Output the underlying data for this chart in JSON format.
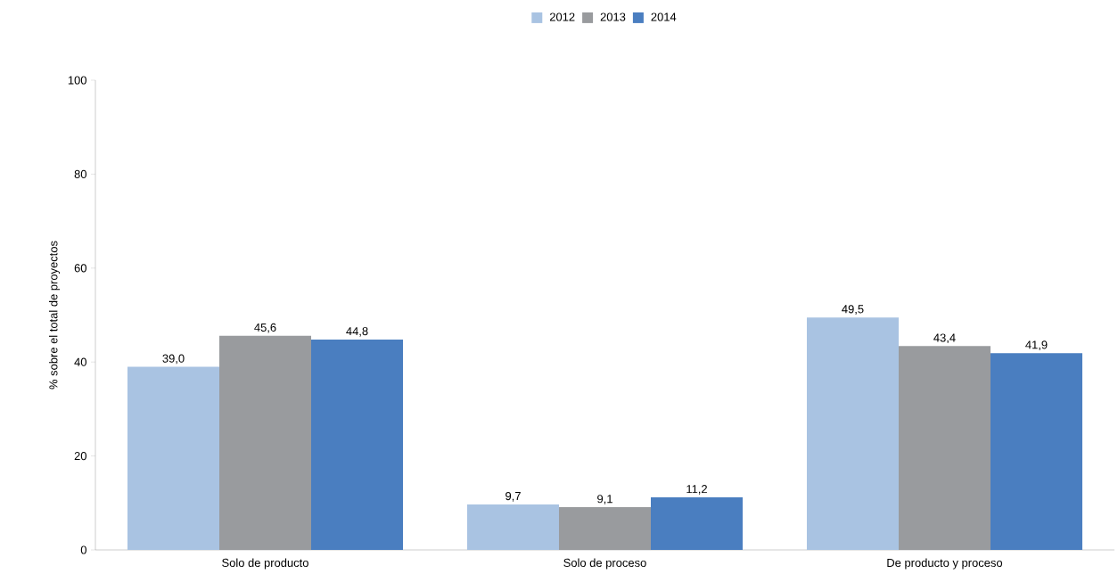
{
  "chart_data": {
    "type": "bar",
    "ylabel": "% sobre el total de proyectos",
    "categories": [
      "Solo de producto",
      "Solo de proceso",
      "De producto y proceso"
    ],
    "series": [
      {
        "name": "2012",
        "color": "#a9c3e2",
        "values": [
          39.0,
          9.7,
          49.5
        ],
        "value_labels": [
          "39,0",
          "9,7",
          "49,5"
        ]
      },
      {
        "name": "2013",
        "color": "#999b9e",
        "values": [
          45.6,
          9.1,
          43.4
        ],
        "value_labels": [
          "45,6",
          "9,1",
          "43,4"
        ]
      },
      {
        "name": "2014",
        "color": "#4a7ec0",
        "values": [
          44.8,
          11.2,
          41.9
        ],
        "value_labels": [
          "44,8",
          "11,2",
          "41,9"
        ]
      }
    ],
    "ylim": [
      0,
      100
    ],
    "yticks": [
      0,
      20,
      40,
      60,
      80,
      100
    ],
    "legend": "top",
    "grid": false
  }
}
